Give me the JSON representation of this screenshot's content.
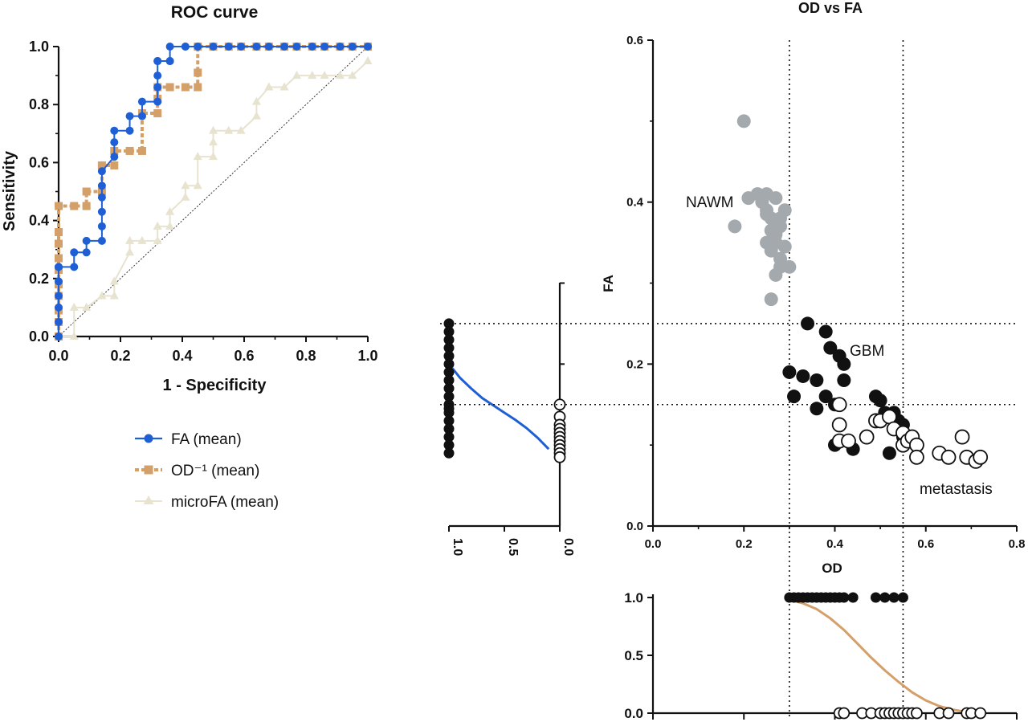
{
  "chart_data": [
    {
      "id": "roc",
      "type": "line",
      "title": "ROC curve",
      "xlabel": "1 - Specificity",
      "ylabel": "Sensitivity",
      "xlim": [
        0,
        1
      ],
      "ylim": [
        0,
        1
      ],
      "xticks": [
        "0.0",
        "0.2",
        "0.4",
        "0.6",
        "0.8",
        "1.0"
      ],
      "yticks": [
        "0.0",
        "0.2",
        "0.4",
        "0.6",
        "0.8",
        "1.0"
      ],
      "legend_position": "below",
      "series": [
        {
          "name": "FA (mean)",
          "marker": "circle",
          "color": "#1f5fd6",
          "x": [
            0,
            0,
            0,
            0,
            0,
            0,
            0,
            0.05,
            0.05,
            0.09,
            0.09,
            0.14,
            0.14,
            0.14,
            0.14,
            0.14,
            0.14,
            0.18,
            0.18,
            0.18,
            0.23,
            0.23,
            0.27,
            0.27,
            0.32,
            0.32,
            0.32,
            0.32,
            0.32,
            0.36,
            0.36,
            0.36,
            0.41,
            0.41,
            0.45,
            0.5,
            0.55,
            0.59,
            0.64,
            0.68,
            0.73,
            0.77,
            0.82,
            0.86,
            0.91,
            0.95,
            1.0
          ],
          "y": [
            0,
            0.05,
            0.1,
            0.14,
            0.19,
            0.24,
            0.24,
            0.24,
            0.29,
            0.29,
            0.33,
            0.33,
            0.38,
            0.43,
            0.48,
            0.52,
            0.57,
            0.62,
            0.67,
            0.71,
            0.71,
            0.76,
            0.76,
            0.81,
            0.81,
            0.86,
            0.9,
            0.95,
            0.95,
            0.95,
            0.95,
            1.0,
            1.0,
            1.0,
            1.0,
            1.0,
            1.0,
            1.0,
            1.0,
            1.0,
            1.0,
            1.0,
            1.0,
            1.0,
            1.0,
            1.0,
            1.0
          ]
        },
        {
          "name": "OD⁻¹ (mean)",
          "marker": "square",
          "color": "#d4a06a",
          "x": [
            0,
            0,
            0,
            0,
            0,
            0,
            0,
            0,
            0,
            0,
            0.05,
            0.09,
            0.09,
            0.14,
            0.14,
            0.18,
            0.18,
            0.23,
            0.27,
            0.27,
            0.32,
            0.32,
            0.32,
            0.36,
            0.41,
            0.45,
            0.45,
            0.45,
            0.5,
            0.55,
            0.59,
            0.64,
            0.68,
            0.73,
            0.77,
            0.82,
            0.86,
            0.91,
            0.95,
            1.0
          ],
          "y": [
            0,
            0.05,
            0.09,
            0.14,
            0.18,
            0.23,
            0.27,
            0.32,
            0.36,
            0.45,
            0.45,
            0.45,
            0.5,
            0.5,
            0.59,
            0.59,
            0.64,
            0.64,
            0.64,
            0.77,
            0.77,
            0.82,
            0.86,
            0.86,
            0.86,
            0.86,
            0.91,
            1.0,
            1.0,
            1.0,
            1.0,
            1.0,
            1.0,
            1.0,
            1.0,
            1.0,
            1.0,
            1.0,
            1.0,
            1.0
          ]
        },
        {
          "name": "microFA (mean)",
          "marker": "triangle",
          "color": "#e7e3cf",
          "x": [
            0,
            0.05,
            0.05,
            0.09,
            0.14,
            0.18,
            0.18,
            0.23,
            0.23,
            0.27,
            0.32,
            0.32,
            0.36,
            0.36,
            0.41,
            0.41,
            0.45,
            0.45,
            0.5,
            0.5,
            0.5,
            0.55,
            0.59,
            0.64,
            0.64,
            0.68,
            0.73,
            0.77,
            0.82,
            0.86,
            0.91,
            0.95,
            1.0
          ],
          "y": [
            0,
            0,
            0.1,
            0.1,
            0.14,
            0.14,
            0.19,
            0.29,
            0.33,
            0.33,
            0.33,
            0.38,
            0.38,
            0.43,
            0.48,
            0.52,
            0.52,
            0.62,
            0.62,
            0.67,
            0.71,
            0.71,
            0.71,
            0.76,
            0.81,
            0.86,
            0.86,
            0.9,
            0.9,
            0.9,
            0.9,
            0.9,
            0.95
          ]
        }
      ]
    },
    {
      "id": "scatter",
      "type": "scatter",
      "title": "OD vs FA",
      "xlabel": "OD",
      "ylabel": "FA",
      "xlim": [
        0,
        0.8
      ],
      "ylim": [
        0,
        0.6
      ],
      "xticks": [
        "0.0",
        "0.2",
        "0.4",
        "0.6",
        "0.8"
      ],
      "yticks": [
        "0.0",
        "0.2",
        "0.4",
        "0.6"
      ],
      "thresholds": {
        "x": [
          0.3,
          0.55
        ],
        "y": [
          0.25,
          0.15
        ]
      },
      "annotations": [
        {
          "text": "NAWM",
          "x": 0.13,
          "y": 0.4
        },
        {
          "text": "GBM",
          "x": 0.43,
          "y": 0.215
        },
        {
          "text": "metastasis",
          "x": 0.6,
          "y": 0.044
        }
      ],
      "series": [
        {
          "group": "NAWM",
          "marker": "filled-circle",
          "color": "#a4a9ad",
          "points": [
            [
              0.2,
              0.5
            ],
            [
              0.18,
              0.37
            ],
            [
              0.26,
              0.28
            ],
            [
              0.27,
              0.31
            ],
            [
              0.28,
              0.32
            ],
            [
              0.3,
              0.32
            ],
            [
              0.28,
              0.33
            ],
            [
              0.26,
              0.34
            ],
            [
              0.25,
              0.35
            ],
            [
              0.27,
              0.36
            ],
            [
              0.28,
              0.38
            ],
            [
              0.25,
              0.39
            ],
            [
              0.24,
              0.4
            ],
            [
              0.23,
              0.41
            ],
            [
              0.21,
              0.405
            ],
            [
              0.25,
              0.41
            ],
            [
              0.27,
              0.405
            ],
            [
              0.29,
              0.39
            ],
            [
              0.28,
              0.37
            ],
            [
              0.26,
              0.38
            ],
            [
              0.25,
              0.385
            ],
            [
              0.27,
              0.35
            ],
            [
              0.29,
              0.345
            ],
            [
              0.26,
              0.365
            ]
          ]
        },
        {
          "group": "GBM",
          "marker": "filled-circle",
          "color": "#111111",
          "points": [
            [
              0.34,
              0.25
            ],
            [
              0.38,
              0.24
            ],
            [
              0.39,
              0.22
            ],
            [
              0.41,
              0.21
            ],
            [
              0.42,
              0.2
            ],
            [
              0.3,
              0.19
            ],
            [
              0.33,
              0.185
            ],
            [
              0.36,
              0.18
            ],
            [
              0.42,
              0.18
            ],
            [
              0.31,
              0.16
            ],
            [
              0.38,
              0.16
            ],
            [
              0.36,
              0.145
            ],
            [
              0.4,
              0.15
            ],
            [
              0.49,
              0.16
            ],
            [
              0.5,
              0.155
            ],
            [
              0.51,
              0.14
            ],
            [
              0.53,
              0.14
            ],
            [
              0.54,
              0.13
            ],
            [
              0.55,
              0.125
            ],
            [
              0.5,
              0.13
            ],
            [
              0.55,
              0.11
            ],
            [
              0.4,
              0.1
            ],
            [
              0.44,
              0.095
            ],
            [
              0.52,
              0.09
            ]
          ]
        },
        {
          "group": "metastasis",
          "marker": "open-circle",
          "color": "#111111",
          "points": [
            [
              0.41,
              0.15
            ],
            [
              0.41,
              0.125
            ],
            [
              0.41,
              0.105
            ],
            [
              0.43,
              0.105
            ],
            [
              0.47,
              0.11
            ],
            [
              0.49,
              0.13
            ],
            [
              0.5,
              0.13
            ],
            [
              0.52,
              0.135
            ],
            [
              0.53,
              0.12
            ],
            [
              0.55,
              0.115
            ],
            [
              0.55,
              0.1
            ],
            [
              0.56,
              0.105
            ],
            [
              0.57,
              0.11
            ],
            [
              0.58,
              0.1
            ],
            [
              0.58,
              0.085
            ],
            [
              0.63,
              0.09
            ],
            [
              0.65,
              0.085
            ],
            [
              0.68,
              0.11
            ],
            [
              0.69,
              0.085
            ],
            [
              0.71,
              0.08
            ],
            [
              0.72,
              0.085
            ]
          ]
        }
      ]
    },
    {
      "id": "fa-logistic",
      "type": "line",
      "title": "",
      "xlim": [
        1,
        0
      ],
      "ylim": [
        0.08,
        0.3
      ],
      "xticks": [
        "1.0",
        "0.5",
        "0.0"
      ],
      "fit_color": "#1f5fd6",
      "fit": {
        "x": [
          0.97,
          0.9,
          0.8,
          0.7,
          0.6,
          0.5,
          0.4,
          0.3,
          0.2,
          0.1
        ],
        "y": [
          0.195,
          0.183,
          0.17,
          0.158,
          0.149,
          0.14,
          0.131,
          0.121,
          0.109,
          0.095
        ]
      },
      "class_1_fa": [
        0.25,
        0.24,
        0.23,
        0.22,
        0.21,
        0.2,
        0.19,
        0.18,
        0.17,
        0.16,
        0.15,
        0.145,
        0.14,
        0.13,
        0.12,
        0.11,
        0.1,
        0.09
      ],
      "class_0_fa": [
        0.15,
        0.135,
        0.125,
        0.12,
        0.115,
        0.11,
        0.105,
        0.1,
        0.095,
        0.09,
        0.085
      ]
    },
    {
      "id": "od-logistic",
      "type": "line",
      "title": "",
      "ylim": [
        0,
        1
      ],
      "yticks": [
        "0.0",
        "0.5",
        "1.0"
      ],
      "fit_color": "#d4a06a",
      "fit": {
        "x": [
          0.3,
          0.33,
          0.36,
          0.39,
          0.42,
          0.45,
          0.48,
          0.51,
          0.54,
          0.57,
          0.6,
          0.63,
          0.66,
          0.69
        ],
        "y": [
          0.98,
          0.95,
          0.9,
          0.82,
          0.72,
          0.6,
          0.48,
          0.37,
          0.27,
          0.18,
          0.11,
          0.06,
          0.03,
          0.01
        ]
      },
      "class_1_od": [
        0.3,
        0.31,
        0.32,
        0.33,
        0.34,
        0.35,
        0.36,
        0.37,
        0.38,
        0.39,
        0.4,
        0.41,
        0.42,
        0.44,
        0.49,
        0.51,
        0.53,
        0.55
      ],
      "class_0_od": [
        0.41,
        0.42,
        0.46,
        0.48,
        0.5,
        0.51,
        0.52,
        0.53,
        0.54,
        0.55,
        0.56,
        0.57,
        0.58,
        0.63,
        0.65,
        0.69,
        0.7,
        0.72
      ]
    }
  ]
}
